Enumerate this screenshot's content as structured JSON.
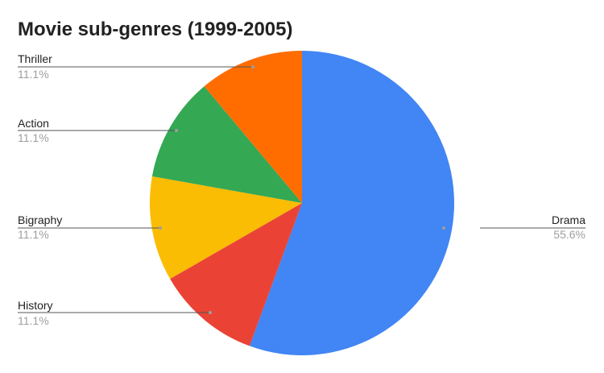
{
  "chart_data": {
    "type": "pie",
    "title": "Movie sub-genres (1999-2005)",
    "categories": [
      "Drama",
      "History",
      "Bigraphy",
      "Action",
      "Thriller"
    ],
    "values": [
      55.6,
      11.1,
      11.1,
      11.1,
      11.1
    ],
    "labels": [
      "55.6%",
      "11.1%",
      "11.1%",
      "11.1%",
      "11.1%"
    ],
    "colors": [
      "#4285f4",
      "#ea4335",
      "#fbbc04",
      "#34a853",
      "#ff6d01"
    ],
    "start_angle": "12 o'clock",
    "direction": "clockwise",
    "legend": "labels with leader lines"
  }
}
